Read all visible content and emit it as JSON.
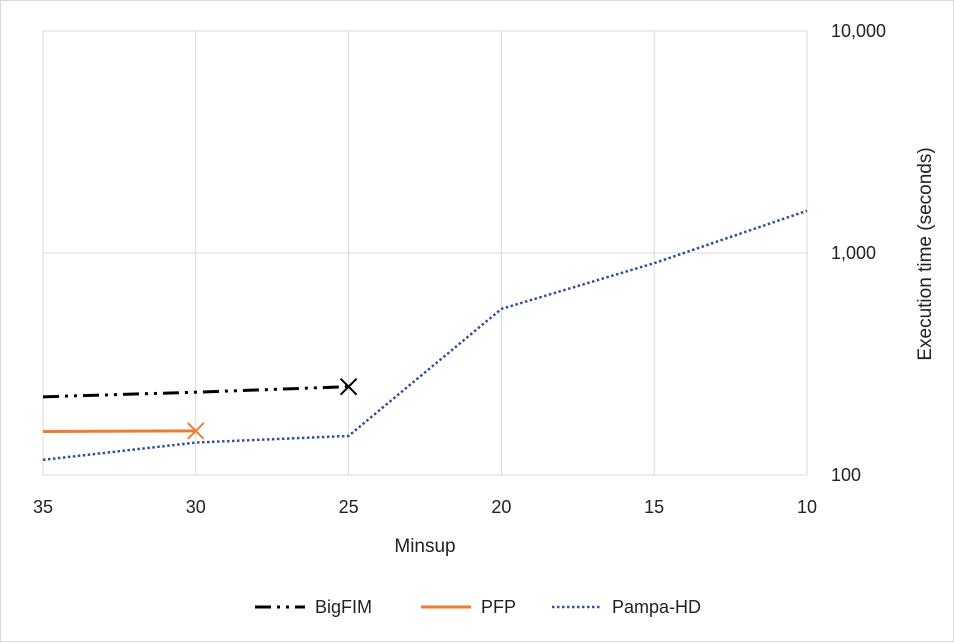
{
  "chart_data": {
    "type": "line",
    "title": "",
    "xlabel": "Minsup",
    "ylabel": "Execution time (seconds)",
    "x_ticks": [
      "35",
      "30",
      "25",
      "20",
      "15",
      "10"
    ],
    "y_ticks": [
      "100",
      "1,000",
      "10,000"
    ],
    "y_tick_values": [
      100,
      1000,
      10000
    ],
    "xlim": [
      35,
      10
    ],
    "ylim": [
      100,
      10000
    ],
    "y_scale": "log",
    "y_axis_side": "right",
    "grid": true,
    "legend_position": "bottom",
    "series": [
      {
        "name": "BigFIM",
        "style": "dash-dot-dot",
        "color": "#000000",
        "x": [
          35,
          30,
          25
        ],
        "y": [
          225,
          236,
          250
        ],
        "end_marker": "x"
      },
      {
        "name": "PFP",
        "style": "solid",
        "color": "#ED7D31",
        "x": [
          35,
          30
        ],
        "y": [
          157,
          158
        ],
        "end_marker": "x"
      },
      {
        "name": "Pampa-HD",
        "style": "dotted",
        "color": "#2F4E9C",
        "x": [
          35,
          30,
          25,
          20,
          15,
          10
        ],
        "y": [
          117,
          140,
          150,
          560,
          900,
          1550
        ],
        "end_marker": null
      }
    ]
  }
}
